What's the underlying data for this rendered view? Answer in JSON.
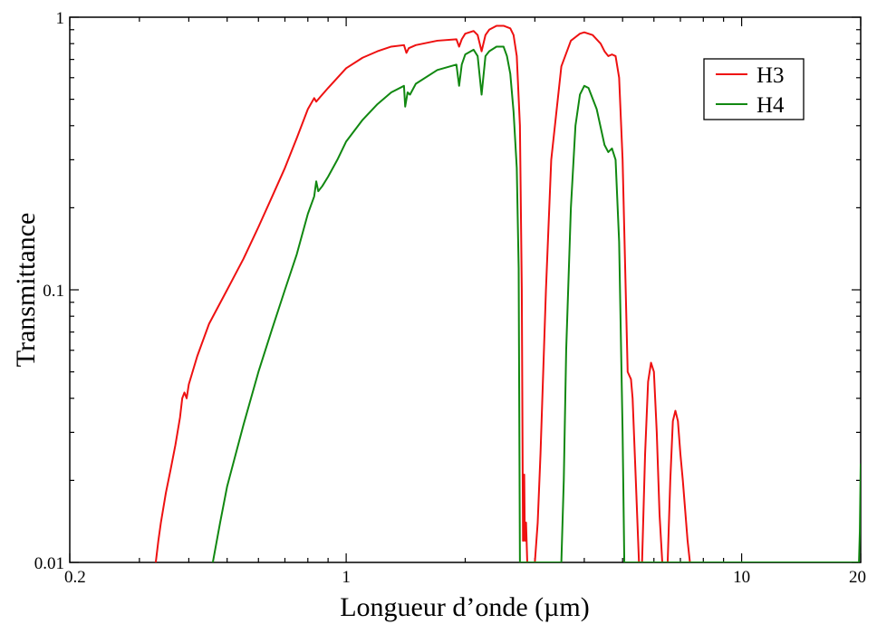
{
  "chart_data": {
    "type": "line",
    "xlabel": "Longueur d’onde (µm)",
    "ylabel": "Transmittance",
    "x_scale": "log",
    "y_scale": "log",
    "xlim": [
      0.2,
      20
    ],
    "ylim": [
      0.01,
      1
    ],
    "x_ticks": [
      {
        "value": 0.2,
        "label": "0.2"
      },
      {
        "value": 1,
        "label": "1"
      },
      {
        "value": 10,
        "label": "10"
      },
      {
        "value": 20,
        "label": "20"
      }
    ],
    "y_ticks": [
      {
        "value": 0.01,
        "label": "0.01"
      },
      {
        "value": 0.1,
        "label": "0.1"
      },
      {
        "value": 1,
        "label": "1"
      }
    ],
    "grid": false,
    "legend_position": "top-right",
    "series": [
      {
        "name": "H3",
        "color": "#ee1111",
        "points": [
          [
            0.33,
            0.01
          ],
          [
            0.335,
            0.012
          ],
          [
            0.34,
            0.014
          ],
          [
            0.35,
            0.018
          ],
          [
            0.36,
            0.022
          ],
          [
            0.37,
            0.027
          ],
          [
            0.38,
            0.034
          ],
          [
            0.385,
            0.04
          ],
          [
            0.39,
            0.042
          ],
          [
            0.395,
            0.04
          ],
          [
            0.4,
            0.045
          ],
          [
            0.42,
            0.057
          ],
          [
            0.45,
            0.075
          ],
          [
            0.5,
            0.1
          ],
          [
            0.55,
            0.13
          ],
          [
            0.6,
            0.17
          ],
          [
            0.65,
            0.22
          ],
          [
            0.7,
            0.28
          ],
          [
            0.75,
            0.36
          ],
          [
            0.8,
            0.46
          ],
          [
            0.83,
            0.505
          ],
          [
            0.84,
            0.49
          ],
          [
            0.86,
            0.51
          ],
          [
            0.9,
            0.55
          ],
          [
            1.0,
            0.65
          ],
          [
            1.1,
            0.71
          ],
          [
            1.2,
            0.75
          ],
          [
            1.3,
            0.78
          ],
          [
            1.4,
            0.79
          ],
          [
            1.42,
            0.74
          ],
          [
            1.44,
            0.77
          ],
          [
            1.5,
            0.79
          ],
          [
            1.7,
            0.82
          ],
          [
            1.9,
            0.83
          ],
          [
            1.93,
            0.78
          ],
          [
            1.96,
            0.83
          ],
          [
            2.0,
            0.87
          ],
          [
            2.1,
            0.89
          ],
          [
            2.15,
            0.86
          ],
          [
            2.2,
            0.75
          ],
          [
            2.25,
            0.86
          ],
          [
            2.3,
            0.9
          ],
          [
            2.4,
            0.93
          ],
          [
            2.5,
            0.93
          ],
          [
            2.6,
            0.91
          ],
          [
            2.65,
            0.86
          ],
          [
            2.7,
            0.72
          ],
          [
            2.75,
            0.4
          ],
          [
            2.78,
            0.1
          ],
          [
            2.8,
            0.012
          ],
          [
            2.82,
            0.021
          ],
          [
            2.83,
            0.012
          ],
          [
            2.85,
            0.014
          ],
          [
            2.87,
            0.01
          ],
          [
            3.0,
            0.01
          ],
          [
            3.05,
            0.014
          ],
          [
            3.1,
            0.025
          ],
          [
            3.2,
            0.1
          ],
          [
            3.3,
            0.3
          ],
          [
            3.5,
            0.66
          ],
          [
            3.7,
            0.82
          ],
          [
            3.9,
            0.87
          ],
          [
            4.0,
            0.88
          ],
          [
            4.2,
            0.86
          ],
          [
            4.4,
            0.8
          ],
          [
            4.5,
            0.75
          ],
          [
            4.6,
            0.72
          ],
          [
            4.7,
            0.73
          ],
          [
            4.8,
            0.72
          ],
          [
            4.9,
            0.6
          ],
          [
            5.0,
            0.3
          ],
          [
            5.1,
            0.09
          ],
          [
            5.15,
            0.05
          ],
          [
            5.25,
            0.047
          ],
          [
            5.3,
            0.04
          ],
          [
            5.4,
            0.02
          ],
          [
            5.5,
            0.01
          ],
          [
            5.6,
            0.01
          ],
          [
            5.7,
            0.025
          ],
          [
            5.8,
            0.046
          ],
          [
            5.9,
            0.054
          ],
          [
            6.0,
            0.05
          ],
          [
            6.1,
            0.03
          ],
          [
            6.2,
            0.015
          ],
          [
            6.3,
            0.01
          ],
          [
            6.5,
            0.01
          ],
          [
            6.6,
            0.02
          ],
          [
            6.7,
            0.033
          ],
          [
            6.8,
            0.036
          ],
          [
            6.9,
            0.033
          ],
          [
            7.0,
            0.025
          ],
          [
            7.1,
            0.02
          ],
          [
            7.3,
            0.012
          ],
          [
            7.4,
            0.01
          ]
        ]
      },
      {
        "name": "H4",
        "color": "#118811",
        "points": [
          [
            0.46,
            0.01
          ],
          [
            0.48,
            0.014
          ],
          [
            0.5,
            0.019
          ],
          [
            0.55,
            0.032
          ],
          [
            0.6,
            0.05
          ],
          [
            0.65,
            0.072
          ],
          [
            0.7,
            0.1
          ],
          [
            0.75,
            0.135
          ],
          [
            0.8,
            0.19
          ],
          [
            0.83,
            0.22
          ],
          [
            0.84,
            0.25
          ],
          [
            0.85,
            0.23
          ],
          [
            0.87,
            0.24
          ],
          [
            0.9,
            0.26
          ],
          [
            0.95,
            0.3
          ],
          [
            1.0,
            0.35
          ],
          [
            1.1,
            0.42
          ],
          [
            1.2,
            0.48
          ],
          [
            1.3,
            0.53
          ],
          [
            1.4,
            0.56
          ],
          [
            1.41,
            0.47
          ],
          [
            1.43,
            0.53
          ],
          [
            1.45,
            0.52
          ],
          [
            1.5,
            0.57
          ],
          [
            1.7,
            0.64
          ],
          [
            1.9,
            0.67
          ],
          [
            1.93,
            0.56
          ],
          [
            1.96,
            0.67
          ],
          [
            2.0,
            0.73
          ],
          [
            2.1,
            0.76
          ],
          [
            2.15,
            0.72
          ],
          [
            2.2,
            0.52
          ],
          [
            2.25,
            0.72
          ],
          [
            2.3,
            0.75
          ],
          [
            2.4,
            0.78
          ],
          [
            2.5,
            0.78
          ],
          [
            2.55,
            0.72
          ],
          [
            2.6,
            0.62
          ],
          [
            2.65,
            0.45
          ],
          [
            2.7,
            0.28
          ],
          [
            2.73,
            0.12
          ],
          [
            2.75,
            0.01
          ],
          [
            3.5,
            0.01
          ],
          [
            3.55,
            0.02
          ],
          [
            3.6,
            0.06
          ],
          [
            3.7,
            0.2
          ],
          [
            3.8,
            0.4
          ],
          [
            3.9,
            0.52
          ],
          [
            4.0,
            0.56
          ],
          [
            4.1,
            0.55
          ],
          [
            4.3,
            0.46
          ],
          [
            4.5,
            0.34
          ],
          [
            4.6,
            0.32
          ],
          [
            4.7,
            0.33
          ],
          [
            4.8,
            0.3
          ],
          [
            4.9,
            0.15
          ],
          [
            5.0,
            0.03
          ],
          [
            5.05,
            0.01
          ],
          [
            18.0,
            0.01
          ],
          [
            18.5,
            0.01
          ],
          [
            19.8,
            0.01
          ],
          [
            19.9,
            0.013
          ],
          [
            20.0,
            0.023
          ]
        ]
      }
    ]
  }
}
